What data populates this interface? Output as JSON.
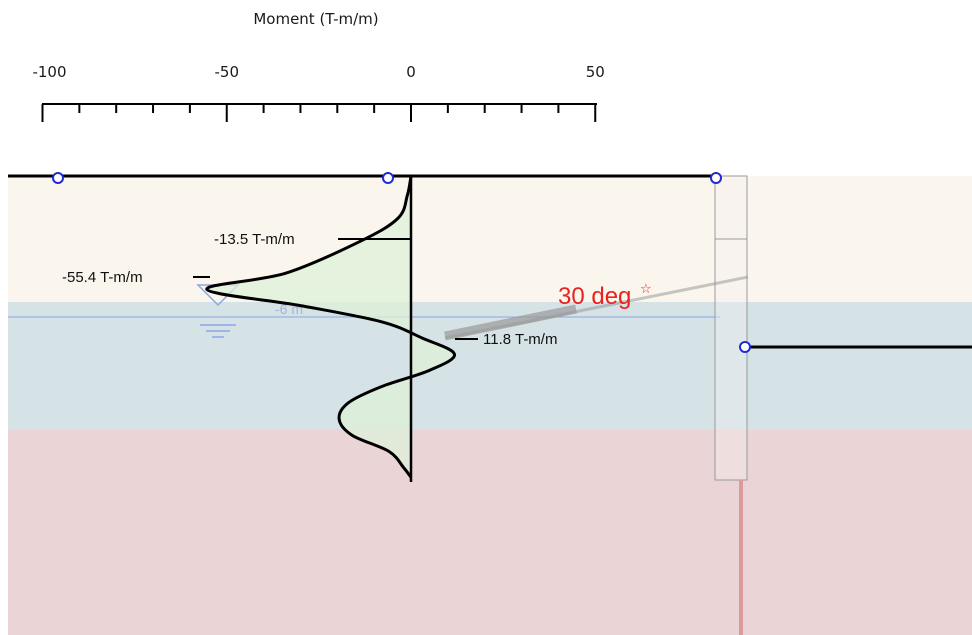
{
  "colors": {
    "upper_soil": "#faf5ed",
    "water_band": "#d5e2e6",
    "lower_soil": "#ebd4d5",
    "moment_fill": "#ddf0d8",
    "curve": "#000000",
    "node": "#1f2bd6",
    "water_line": "#8fa6e6",
    "angle_label": "#e8221f",
    "anchor": "#9a9a9a"
  },
  "axis": {
    "title": "Moment (T-m/m)",
    "ticks": [
      {
        "value": -100,
        "label": "-100"
      },
      {
        "value": -50,
        "label": "-50"
      },
      {
        "value": 0,
        "label": "0"
      },
      {
        "value": 50,
        "label": "50"
      }
    ],
    "minor_step": 10,
    "range": [
      -100,
      50
    ]
  },
  "chart_data": {
    "type": "line",
    "title": "",
    "xlabel": "Moment (T-m/m)",
    "ylabel": "",
    "xlim": [
      -100,
      50
    ],
    "series": [
      {
        "values": [
          {
            "depth": 0.0,
            "moment": 0
          },
          {
            "depth": 0.6,
            "moment": -1
          },
          {
            "depth": 1.3,
            "moment": -3.5
          },
          {
            "depth": 2.0,
            "moment": -13.5
          },
          {
            "depth": 3.0,
            "moment": -34
          },
          {
            "depth": 3.5,
            "moment": -55.4
          },
          {
            "depth": 4.0,
            "moment": -30
          },
          {
            "depth": 4.5,
            "moment": -8
          },
          {
            "depth": 5.0,
            "moment": 3
          },
          {
            "depth": 5.5,
            "moment": 11.8
          },
          {
            "depth": 6.0,
            "moment": 5
          },
          {
            "depth": 6.5,
            "moment": -8
          },
          {
            "depth": 7.0,
            "moment": -17
          },
          {
            "depth": 7.5,
            "moment": -19.5
          },
          {
            "depth": 8.0,
            "moment": -16
          },
          {
            "depth": 8.5,
            "moment": -6
          },
          {
            "depth": 9.0,
            "moment": -2
          },
          {
            "depth": 9.3,
            "moment": 0
          }
        ]
      }
    ],
    "annotations": [
      {
        "text": "-13.5 T-m/m",
        "moment": -13.5
      },
      {
        "text": "-55.4 T-m/m",
        "moment": -55.4
      },
      {
        "text": "11.8 T-m/m",
        "moment": 11.8
      }
    ]
  },
  "labels": {
    "max_neg_13": "-13.5 T-m/m",
    "max_neg_55": "-55.4 T-m/m",
    "max_pos_11": "11.8 T-m/m",
    "water_depth": "-6 m",
    "anchor_angle": "30 deg"
  }
}
